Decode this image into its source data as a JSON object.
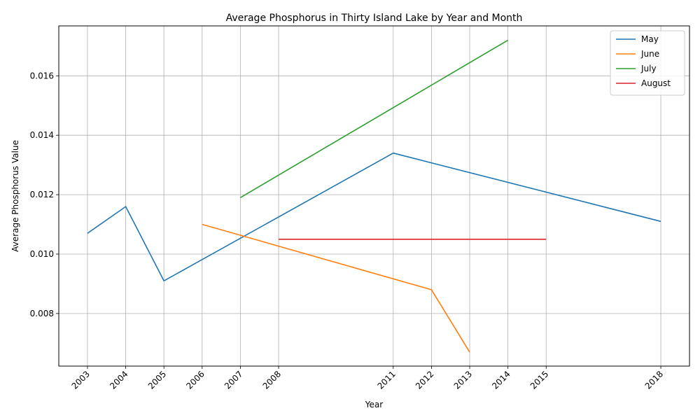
{
  "chart_data": {
    "type": "line",
    "title": "Average Phosphorus in Thirty Island Lake by Year and Month",
    "xlabel": "Year",
    "ylabel": "Average Phosphorus Value",
    "x_ticks": [
      2003,
      2004,
      2005,
      2006,
      2007,
      2008,
      2011,
      2012,
      2013,
      2014,
      2015,
      2018
    ],
    "x_tick_labels": [
      "2003",
      "2004",
      "2005",
      "2006",
      "2007",
      "2008",
      "2011",
      "2012",
      "2013",
      "2014",
      "2015",
      "2018"
    ],
    "y_ticks": [
      0.008,
      0.01,
      0.012,
      0.014,
      0.016
    ],
    "y_tick_labels": [
      "0.008",
      "0.010",
      "0.012",
      "0.014",
      "0.016"
    ],
    "xlim": [
      2002.25,
      2018.75
    ],
    "ylim": [
      0.00623,
      0.01768
    ],
    "grid": true,
    "legend_position": "top-right",
    "series": [
      {
        "name": "May",
        "color": "#1f77b4",
        "x": [
          2003,
          2004,
          2005,
          2011,
          2018
        ],
        "y": [
          0.0107,
          0.0116,
          0.0091,
          0.0134,
          0.0111
        ]
      },
      {
        "name": "June",
        "color": "#ff7f0e",
        "x": [
          2006,
          2012,
          2013
        ],
        "y": [
          0.011,
          0.0088,
          0.0067
        ]
      },
      {
        "name": "July",
        "color": "#2ca02c",
        "x": [
          2007,
          2014
        ],
        "y": [
          0.0119,
          0.0172
        ]
      },
      {
        "name": "August",
        "color": "#d62728",
        "x": [
          2008,
          2015
        ],
        "y": [
          0.0105,
          0.0105
        ]
      }
    ]
  }
}
